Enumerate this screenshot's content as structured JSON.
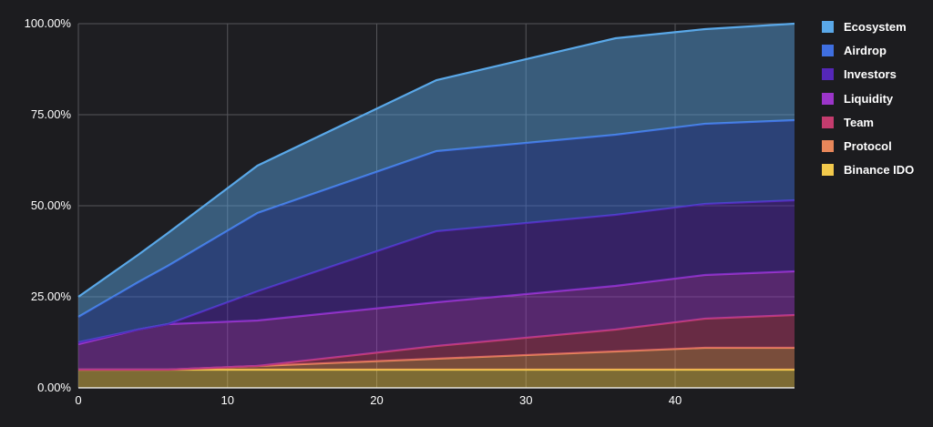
{
  "chart_data": {
    "type": "area",
    "stacked": true,
    "x": [
      0,
      4,
      6,
      12,
      24,
      36,
      42,
      48
    ],
    "xticks": [
      "0",
      "10",
      "20",
      "30",
      "40"
    ],
    "xtick_values": [
      0,
      10,
      20,
      30,
      40
    ],
    "xlim": [
      0,
      48
    ],
    "yticks": [
      "0.00%",
      "25.00%",
      "50.00%",
      "75.00%",
      "100.00%"
    ],
    "ytick_values": [
      0,
      25,
      50,
      75,
      100
    ],
    "ylim": [
      0,
      100
    ],
    "grid": true,
    "legend_position": "right",
    "series": [
      {
        "name": "Binance IDO",
        "color": "#f2c94c",
        "values": [
          5,
          5,
          5,
          5,
          5,
          5,
          5,
          5
        ]
      },
      {
        "name": "Protocol",
        "color": "#e8875a",
        "values": [
          0,
          0,
          0,
          1,
          3,
          5,
          6,
          6
        ]
      },
      {
        "name": "Team",
        "color": "#c43c6e",
        "values": [
          0,
          0,
          0,
          0,
          3.5,
          6,
          8,
          9
        ]
      },
      {
        "name": "Liquidity",
        "color": "#9b35c9",
        "values": [
          7,
          11,
          12.5,
          12.5,
          12,
          12,
          12,
          12
        ]
      },
      {
        "name": "Investors",
        "color": "#5527b8",
        "values": [
          0.5,
          0,
          0,
          8,
          19.5,
          19.5,
          19.5,
          19.5
        ]
      },
      {
        "name": "Airdrop",
        "color": "#3f6fe0",
        "values": [
          7,
          13,
          16,
          21.5,
          22,
          22,
          22,
          22
        ]
      },
      {
        "name": "Ecosystem",
        "color": "#5aa8e8",
        "values": [
          5.5,
          7.5,
          9,
          13,
          19.5,
          26.5,
          26,
          26.5
        ]
      }
    ],
    "legend_order": [
      "Ecosystem",
      "Airdrop",
      "Investors",
      "Liquidity",
      "Team",
      "Protocol",
      "Binance IDO"
    ]
  }
}
